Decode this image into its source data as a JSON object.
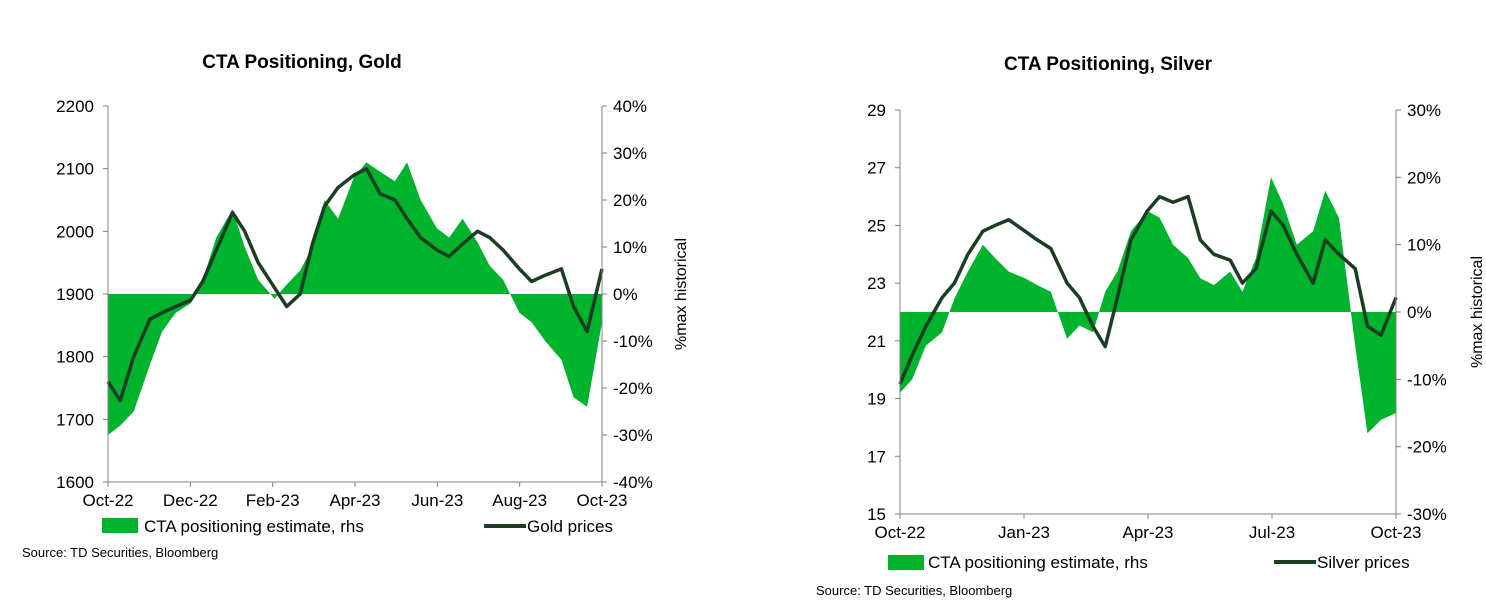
{
  "colors": {
    "area": "#00b32c",
    "line": "#1b3d22",
    "axis": "#808080"
  },
  "chart_data": [
    {
      "type": "line+area",
      "title": "CTA Positioning, Gold",
      "ylabel_right": "%max historical",
      "x_ticks": [
        "Oct-22",
        "Dec-22",
        "Feb-23",
        "Apr-23",
        "Jun-23",
        "Aug-23",
        "Oct-23"
      ],
      "y_left": {
        "min": 1600,
        "max": 2200,
        "ticks": [
          "1600",
          "1700",
          "1800",
          "1900",
          "2000",
          "2100",
          "2200"
        ]
      },
      "y_right": {
        "min": -40,
        "max": 40,
        "ticks": [
          "-40%",
          "-30%",
          "-20%",
          "-10%",
          "0%",
          "10%",
          "20%",
          "30%",
          "40%"
        ]
      },
      "x_range": [
        "2022-10-01",
        "2023-10-01"
      ],
      "series": [
        {
          "name": "CTA positioning estimate, rhs",
          "kind": "area",
          "axis": "right",
          "dates": [
            "2022-10-01",
            "2022-10-10",
            "2022-10-20",
            "2022-11-01",
            "2022-11-10",
            "2022-11-20",
            "2022-12-01",
            "2022-12-10",
            "2022-12-20",
            "2023-01-01",
            "2023-01-10",
            "2023-01-20",
            "2023-02-01",
            "2023-02-10",
            "2023-02-20",
            "2023-03-01",
            "2023-03-10",
            "2023-03-20",
            "2023-04-01",
            "2023-04-10",
            "2023-04-20",
            "2023-05-01",
            "2023-05-10",
            "2023-05-20",
            "2023-06-01",
            "2023-06-10",
            "2023-06-20",
            "2023-07-01",
            "2023-07-10",
            "2023-07-20",
            "2023-08-01",
            "2023-08-10",
            "2023-08-20",
            "2023-09-01",
            "2023-09-10",
            "2023-09-20",
            "2023-10-01"
          ],
          "values": [
            -30,
            -28,
            -25,
            -15,
            -8,
            -4,
            -2,
            3,
            12,
            18,
            10,
            3,
            -1,
            2,
            5,
            10,
            20,
            16,
            25,
            28,
            26,
            24,
            28,
            20,
            14,
            12,
            16,
            11,
            6,
            3,
            -4,
            -6,
            -10,
            -14,
            -22,
            -24,
            -6
          ]
        },
        {
          "name": "Gold prices",
          "kind": "line",
          "axis": "left",
          "dates": [
            "2022-10-01",
            "2022-10-10",
            "2022-10-20",
            "2022-11-01",
            "2022-11-10",
            "2022-11-20",
            "2022-12-01",
            "2022-12-10",
            "2022-12-20",
            "2023-01-01",
            "2023-01-10",
            "2023-01-20",
            "2023-02-01",
            "2023-02-10",
            "2023-02-20",
            "2023-03-01",
            "2023-03-10",
            "2023-03-20",
            "2023-04-01",
            "2023-04-10",
            "2023-04-20",
            "2023-05-01",
            "2023-05-10",
            "2023-05-20",
            "2023-06-01",
            "2023-06-10",
            "2023-06-20",
            "2023-07-01",
            "2023-07-10",
            "2023-07-20",
            "2023-08-01",
            "2023-08-10",
            "2023-08-20",
            "2023-09-01",
            "2023-09-10",
            "2023-09-20",
            "2023-10-01"
          ],
          "values": [
            1760,
            1730,
            1800,
            1860,
            1870,
            1880,
            1890,
            1920,
            1970,
            2030,
            2000,
            1950,
            1910,
            1880,
            1900,
            1980,
            2040,
            2070,
            2090,
            2100,
            2060,
            2050,
            2020,
            1990,
            1970,
            1960,
            1980,
            2000,
            1990,
            1970,
            1940,
            1920,
            1930,
            1940,
            1880,
            1840,
            1940
          ]
        }
      ]
    },
    {
      "type": "line+area",
      "title": "CTA Positioning, Silver",
      "ylabel_right": "%max historical",
      "x_ticks": [
        "Oct-22",
        "Jan-23",
        "Apr-23",
        "Jul-23",
        "Oct-23"
      ],
      "y_left": {
        "min": 15,
        "max": 29,
        "ticks": [
          "15",
          "17",
          "19",
          "21",
          "23",
          "25",
          "27",
          "29"
        ]
      },
      "y_right": {
        "min": -30,
        "max": 30,
        "ticks": [
          "-30%",
          "-20%",
          "-10%",
          "0%",
          "10%",
          "20%",
          "30%"
        ]
      },
      "x_range": [
        "2022-10-01",
        "2023-10-01"
      ],
      "series": [
        {
          "name": "CTA positioning estimate, rhs",
          "kind": "area",
          "axis": "right",
          "dates": [
            "2022-10-01",
            "2022-10-10",
            "2022-10-20",
            "2022-11-01",
            "2022-11-10",
            "2022-11-20",
            "2022-12-01",
            "2022-12-10",
            "2022-12-20",
            "2023-01-01",
            "2023-01-10",
            "2023-01-20",
            "2023-02-01",
            "2023-02-10",
            "2023-02-20",
            "2023-03-01",
            "2023-03-10",
            "2023-03-20",
            "2023-04-01",
            "2023-04-10",
            "2023-04-20",
            "2023-05-01",
            "2023-05-10",
            "2023-05-20",
            "2023-06-01",
            "2023-06-10",
            "2023-06-20",
            "2023-07-01",
            "2023-07-10",
            "2023-07-20",
            "2023-08-01",
            "2023-08-10",
            "2023-08-20",
            "2023-09-01",
            "2023-09-10",
            "2023-09-20",
            "2023-10-01"
          ],
          "values": [
            -12,
            -10,
            -5,
            -3,
            2,
            6,
            10,
            8,
            6,
            5,
            4,
            3,
            -4,
            -2,
            -3,
            3,
            6,
            12,
            15,
            14,
            10,
            8,
            5,
            4,
            6,
            3,
            8,
            20,
            16,
            10,
            12,
            18,
            14,
            -5,
            -18,
            -16,
            -15
          ]
        },
        {
          "name": "Silver prices",
          "kind": "line",
          "axis": "left",
          "dates": [
            "2022-10-01",
            "2022-10-10",
            "2022-10-20",
            "2022-11-01",
            "2022-11-10",
            "2022-11-20",
            "2022-12-01",
            "2022-12-10",
            "2022-12-20",
            "2023-01-01",
            "2023-01-10",
            "2023-01-20",
            "2023-02-01",
            "2023-02-10",
            "2023-02-20",
            "2023-03-01",
            "2023-03-10",
            "2023-03-20",
            "2023-04-01",
            "2023-04-10",
            "2023-04-20",
            "2023-05-01",
            "2023-05-10",
            "2023-05-20",
            "2023-06-01",
            "2023-06-10",
            "2023-06-20",
            "2023-07-01",
            "2023-07-10",
            "2023-07-20",
            "2023-08-01",
            "2023-08-10",
            "2023-08-20",
            "2023-09-01",
            "2023-09-10",
            "2023-09-20",
            "2023-10-01"
          ],
          "values": [
            19.5,
            20.5,
            21.5,
            22.5,
            23.0,
            24.0,
            24.8,
            25.0,
            25.2,
            24.8,
            24.5,
            24.2,
            23.0,
            22.5,
            21.5,
            20.8,
            22.5,
            24.5,
            25.5,
            26.0,
            25.8,
            26.0,
            24.5,
            24.0,
            23.8,
            23.0,
            23.5,
            25.5,
            25.0,
            24.0,
            23.0,
            24.5,
            24.0,
            23.5,
            21.5,
            21.2,
            22.5
          ]
        }
      ]
    }
  ],
  "charts": [
    {
      "title": "CTA Positioning, Gold",
      "ylabel": "%max historical",
      "legend_area": "CTA positioning estimate, rhs",
      "legend_line": "Gold prices",
      "source": "Source: TD Securities, Bloomberg"
    },
    {
      "title": "CTA Positioning, Silver",
      "ylabel": "%max historical",
      "legend_area": "CTA positioning estimate, rhs",
      "legend_line": "Silver prices",
      "source": "Source: TD Securities, Bloomberg"
    }
  ]
}
